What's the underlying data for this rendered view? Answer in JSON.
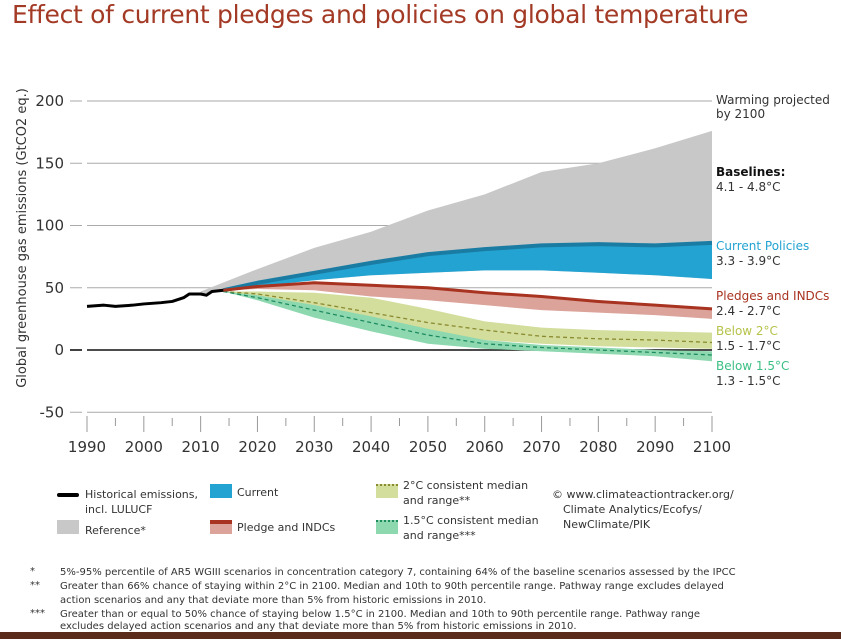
{
  "title": "Effect of current pledges and policies on global temperature",
  "chart_data": {
    "type": "area",
    "ylabel": "Global greenhouse gas emissions (GtCO2 eq.)",
    "ylim": [
      -50,
      200
    ],
    "xlim": [
      1990,
      2100
    ],
    "yticks": [
      "200",
      "150",
      "100",
      "50",
      "0",
      "-50"
    ],
    "xticks": [
      "1990",
      "2000",
      "2010",
      "2020",
      "2030",
      "2040",
      "2050",
      "2060",
      "2070",
      "2080",
      "2090",
      "2100"
    ],
    "grid": true,
    "historical": {
      "x": [
        1990,
        1993,
        1995,
        1998,
        2000,
        2003,
        2005,
        2007,
        2008,
        2010,
        2011,
        2012,
        2014
      ],
      "y": [
        35,
        36,
        35,
        36,
        37,
        38,
        39,
        42,
        45,
        45,
        44,
        47,
        48
      ]
    },
    "reference": {
      "x": [
        2010,
        2020,
        2030,
        2040,
        2050,
        2060,
        2070,
        2080,
        2090,
        2100
      ],
      "lower": [
        45,
        52,
        56,
        60,
        62,
        64,
        64,
        62,
        60,
        57
      ],
      "upper": [
        47,
        65,
        82,
        95,
        112,
        125,
        143,
        150,
        162,
        176
      ]
    },
    "current": {
      "x": [
        2014,
        2020,
        2030,
        2040,
        2050,
        2060,
        2070,
        2080,
        2090,
        2100
      ],
      "lower": [
        48,
        51,
        56,
        60,
        62,
        64,
        64,
        62,
        60,
        57
      ],
      "upper": [
        48,
        54,
        62,
        70,
        77,
        81,
        84,
        85,
        84,
        86
      ]
    },
    "pledges": {
      "x": [
        2014,
        2020,
        2030,
        2040,
        2050,
        2060,
        2070,
        2080,
        2090,
        2100
      ],
      "median": [
        48,
        51,
        54,
        52,
        50,
        46,
        43,
        39,
        36,
        33
      ],
      "lower": [
        48,
        49,
        48,
        43,
        40,
        36,
        32,
        30,
        28,
        25
      ]
    },
    "below2": {
      "x": [
        2014,
        2020,
        2030,
        2040,
        2050,
        2060,
        2070,
        2080,
        2090,
        2100
      ],
      "lower": [
        47,
        43,
        34,
        25,
        15,
        8,
        5,
        3,
        2,
        1
      ],
      "upper": [
        47,
        47,
        46,
        42,
        33,
        23,
        18,
        16,
        15,
        14
      ],
      "median": [
        47,
        45,
        38,
        30,
        22,
        16,
        11,
        9,
        8,
        6
      ]
    },
    "below15": {
      "x": [
        2014,
        2020,
        2030,
        2040,
        2050,
        2060,
        2070,
        2080,
        2090,
        2100
      ],
      "lower": [
        47,
        40,
        26,
        15,
        5,
        1,
        -1,
        -3,
        -5,
        -9
      ],
      "upper": [
        47,
        44,
        36,
        27,
        17,
        8,
        4,
        2,
        0,
        -1
      ],
      "median": [
        47,
        42,
        32,
        22,
        12,
        5,
        2,
        0,
        -2,
        -4
      ]
    },
    "colors": {
      "historical": "#000000",
      "reference": "#c8c8c8",
      "current": "#23a3d2",
      "current_dark": "#1b7ca3",
      "pledge": "#a83320",
      "pledge_band": "#dba39a",
      "below2": "#d3dd9c",
      "below2_line": "#8a8a30",
      "below15": "#8ed8b0",
      "below15_line": "#1e8a60"
    },
    "right_labels": {
      "header": [
        "Warming projected",
        "by 2100"
      ],
      "baselines": {
        "name": "Baselines:",
        "range": "4.1 - 4.8°C"
      },
      "current": {
        "name": "Current Policies",
        "range": "3.3 - 3.9°C"
      },
      "pledges": {
        "name": "Pledges and INDCs",
        "range": "2.4 - 2.7°C"
      },
      "below2": {
        "name": "Below 2°C",
        "range": "1.5 - 1.7°C"
      },
      "below15": {
        "name": "Below 1.5°C",
        "range": "1.3 - 1.5°C"
      }
    }
  },
  "legend": {
    "historical": [
      "Historical emissions,",
      "incl. LULUCF"
    ],
    "reference": "Reference*",
    "current": "Current",
    "pledge": "Pledge and INDCs",
    "below2": [
      "2°C consistent median",
      "and range**"
    ],
    "below15": [
      "1.5°C consistent median",
      "and range***"
    ],
    "credit": [
      "© www.climateactiontracker.org/",
      "Climate Analytics/Ecofys/",
      "NewClimate/PIK"
    ]
  },
  "footnotes": [
    {
      "mark": "*",
      "lines": [
        "5%-95% percentile of AR5 WGIII scenarios in concentration category 7, containing 64% of the baseline scenarios assessed by the IPCC"
      ]
    },
    {
      "mark": "**",
      "lines": [
        "Greater than 66% chance of staying within 2°C in 2100. Median and 10th to 90th percentile range. Pathway range excludes delayed",
        "action scenarios and any that deviate more than 5% from historic emissions in 2010."
      ]
    },
    {
      "mark": "***",
      "lines": [
        "Greater than or equal to 50% chance of staying below 1.5°C in 2100. Median and 10th to 90th percentile range. Pathway range",
        "excludes delayed action scenarios and any that deviate more than 5% from historic emissions in 2010."
      ]
    }
  ]
}
